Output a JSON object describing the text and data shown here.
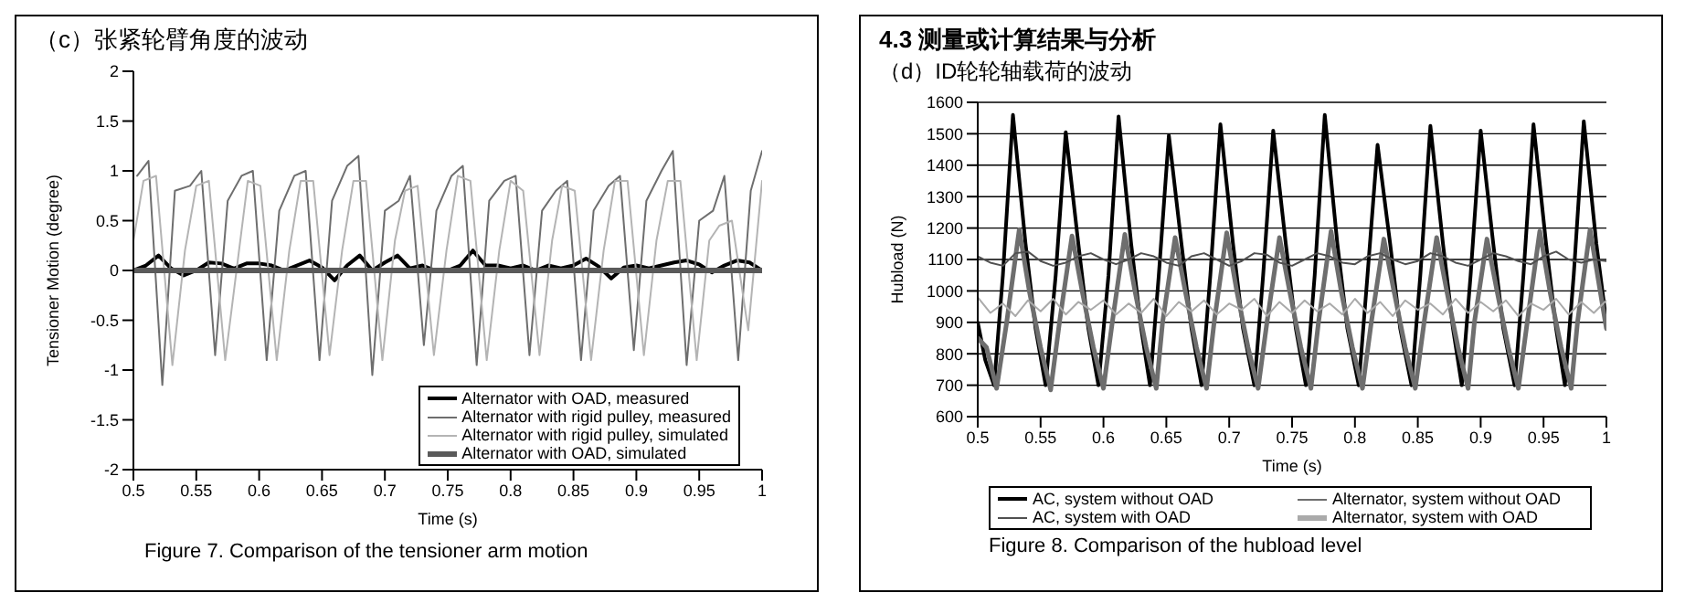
{
  "chart_data": [
    {
      "type": "line",
      "title": "（c）张紧轮臂角度的波动",
      "xlabel": "Time (s)",
      "ylabel": "Tensioner Motion (degree)",
      "annotations": [
        "Figure 7. Comparison of the tensioner arm motion"
      ],
      "xlim": [
        0.5,
        1
      ],
      "xticks": [
        0.5,
        0.55,
        0.6,
        0.65,
        0.7,
        0.75,
        0.8,
        0.85,
        0.9,
        0.95,
        1
      ],
      "ylim": [
        -2,
        2
      ],
      "yticks": [
        -2,
        -1.5,
        -1,
        -0.5,
        0,
        0.5,
        1,
        1.5,
        2
      ],
      "legend": "bottom right",
      "x": [
        0.5,
        0.51,
        0.52,
        0.53,
        0.54,
        0.55,
        0.56,
        0.57,
        0.58,
        0.59,
        0.6,
        0.61,
        0.62,
        0.63,
        0.64,
        0.65,
        0.66,
        0.67,
        0.68,
        0.69,
        0.7,
        0.71,
        0.72,
        0.73,
        0.74,
        0.75,
        0.76,
        0.77,
        0.78,
        0.79,
        0.8,
        0.81,
        0.82,
        0.83,
        0.84,
        0.85,
        0.86,
        0.87,
        0.88,
        0.89,
        0.9,
        0.91,
        0.92,
        0.93,
        0.94,
        0.95,
        0.96,
        0.97,
        0.98,
        0.99,
        1
      ],
      "series": [
        {
          "name": "Alternator with OAD, measured",
          "color": "#000000",
          "values": [
            0,
            0.05,
            0.15,
            0.02,
            -0.05,
            0,
            0.08,
            0.07,
            0.02,
            0.07,
            0.07,
            0.05,
            0,
            0.05,
            0.1,
            0.03,
            -0.1,
            0.05,
            0.15,
            0,
            0.08,
            0.15,
            0.02,
            0.05,
            0,
            0,
            0.05,
            0.2,
            0.05,
            0.05,
            0.02,
            0.05,
            0,
            0.05,
            0.02,
            0.05,
            0.12,
            0.04,
            -0.08,
            0.03,
            0.05,
            0.02,
            0.05,
            0.08,
            0.1,
            0.06,
            -0.02,
            0.05,
            0.1,
            0.08,
            0
          ]
        },
        {
          "name": "Alternator with rigid pulley, measured",
          "color": "#6e6e6e",
          "x": [
            0.503,
            0.512,
            0.523,
            0.533,
            0.545,
            0.554,
            0.565,
            0.575,
            0.586,
            0.595,
            0.606,
            0.616,
            0.628,
            0.637,
            0.648,
            0.658,
            0.67,
            0.679,
            0.69,
            0.7,
            0.711,
            0.72,
            0.731,
            0.741,
            0.753,
            0.762,
            0.773,
            0.783,
            0.795,
            0.804,
            0.815,
            0.825,
            0.836,
            0.845,
            0.856,
            0.866,
            0.878,
            0.887,
            0.898,
            0.908,
            0.92,
            0.929,
            0.94,
            0.95,
            0.961,
            0.97,
            0.981,
            0.991,
            1
          ],
          "values": [
            0.95,
            1.1,
            -1.15,
            0.8,
            0.85,
            1,
            -0.85,
            0.7,
            0.95,
            1,
            -0.9,
            0.6,
            0.95,
            1,
            -0.9,
            0.7,
            1.05,
            1.15,
            -1.05,
            0.6,
            0.7,
            0.95,
            -0.75,
            0.6,
            0.95,
            1.05,
            -0.95,
            0.7,
            0.9,
            0.95,
            -0.85,
            0.6,
            0.8,
            0.9,
            -0.9,
            0.6,
            0.85,
            0.95,
            -0.8,
            0.7,
            1,
            1.2,
            -0.95,
            0.5,
            0.6,
            0.95,
            -0.9,
            0.8,
            1.2
          ]
        },
        {
          "name": "Alternator with rigid pulley, simulated",
          "color": "#b4b4b4",
          "x": [
            0.5,
            0.508,
            0.518,
            0.531,
            0.541,
            0.55,
            0.56,
            0.573,
            0.583,
            0.591,
            0.601,
            0.614,
            0.624,
            0.633,
            0.643,
            0.656,
            0.666,
            0.675,
            0.685,
            0.698,
            0.708,
            0.716,
            0.726,
            0.739,
            0.749,
            0.758,
            0.768,
            0.781,
            0.791,
            0.8,
            0.81,
            0.823,
            0.833,
            0.841,
            0.851,
            0.864,
            0.874,
            0.883,
            0.893,
            0.906,
            0.916,
            0.925,
            0.935,
            0.948,
            0.958,
            0.966,
            0.976,
            0.989,
            1
          ],
          "values": [
            0.3,
            0.9,
            0.95,
            -0.95,
            0.2,
            0.85,
            0.9,
            -0.9,
            0.1,
            0.9,
            0.85,
            -0.9,
            0.2,
            0.9,
            0.9,
            -0.85,
            0.2,
            0.9,
            0.9,
            -0.9,
            0.3,
            0.8,
            0.85,
            -0.85,
            0.2,
            0.95,
            0.9,
            -0.9,
            0.2,
            0.9,
            0.8,
            -0.85,
            0.3,
            0.85,
            0.8,
            -0.9,
            0.2,
            0.9,
            0.9,
            -0.85,
            0.3,
            0.9,
            0.9,
            -0.9,
            0.3,
            0.45,
            0.5,
            -0.6,
            0.9
          ]
        },
        {
          "name": "Alternator with OAD, simulated",
          "color": "#5a5a5a",
          "x": [
            0.5,
            0.75,
            1
          ],
          "values": [
            0,
            0,
            0
          ]
        }
      ]
    },
    {
      "type": "line",
      "title": "4.3 测量或计算结果与分析",
      "subtitle": "（d）ID轮轮轴载荷的波动",
      "xlabel": "Time (s)",
      "ylabel": "Hubload (N)",
      "annotations": [
        "Figure 8. Comparison of the hubload level"
      ],
      "xlim": [
        0.5,
        1
      ],
      "xticks": [
        0.5,
        0.55,
        0.6,
        0.65,
        0.7,
        0.75,
        0.8,
        0.85,
        0.9,
        0.95,
        1
      ],
      "ylim": [
        600,
        1600
      ],
      "yticks": [
        600,
        700,
        800,
        900,
        1000,
        1100,
        1200,
        1300,
        1400,
        1500,
        1600
      ],
      "grid": "y",
      "legend": "bottom",
      "x": [
        0.5,
        0.51,
        0.52,
        0.53,
        0.54,
        0.55,
        0.56,
        0.57,
        0.58,
        0.59,
        0.6,
        0.61,
        0.62,
        0.63,
        0.64,
        0.65,
        0.66,
        0.67,
        0.68,
        0.69,
        0.7,
        0.71,
        0.72,
        0.73,
        0.74,
        0.75,
        0.76,
        0.77,
        0.78,
        0.79,
        0.8,
        0.81,
        0.82,
        0.83,
        0.84,
        0.85,
        0.86,
        0.87,
        0.88,
        0.89,
        0.9,
        0.91,
        0.92,
        0.93,
        0.94,
        0.95,
        0.96,
        0.97,
        0.98,
        0.99,
        1
      ],
      "series": [
        {
          "name": "AC, system without OAD",
          "color": "#000000",
          "x": [
            0.5,
            0.506,
            0.513,
            0.52,
            0.528,
            0.538,
            0.546,
            0.554,
            0.562,
            0.57,
            0.58,
            0.588,
            0.596,
            0.604,
            0.612,
            0.622,
            0.63,
            0.637,
            0.644,
            0.652,
            0.662,
            0.67,
            0.678,
            0.685,
            0.693,
            0.703,
            0.711,
            0.72,
            0.727,
            0.735,
            0.745,
            0.753,
            0.761,
            0.768,
            0.776,
            0.786,
            0.794,
            0.803,
            0.81,
            0.818,
            0.828,
            0.836,
            0.845,
            0.852,
            0.86,
            0.87,
            0.878,
            0.885,
            0.892,
            0.9,
            0.91,
            0.918,
            0.927,
            0.934,
            0.942,
            0.952,
            0.96,
            0.967,
            0.974,
            0.982,
            0.992,
            1
          ],
          "values": [
            900,
            780,
            700,
            1050,
            1560,
            1150,
            880,
            700,
            1050,
            1505,
            1150,
            880,
            700,
            1050,
            1555,
            1150,
            880,
            700,
            1050,
            1495,
            1150,
            880,
            700,
            1050,
            1530,
            1150,
            880,
            700,
            1050,
            1510,
            1150,
            880,
            700,
            1050,
            1560,
            1150,
            880,
            700,
            1050,
            1465,
            1150,
            880,
            700,
            1050,
            1525,
            1150,
            880,
            700,
            1050,
            1510,
            1150,
            880,
            700,
            1050,
            1530,
            1150,
            880,
            700,
            1050,
            1540,
            1150,
            900
          ]
        },
        {
          "name": "Alternator, system without OAD",
          "color": "#6e6e6e",
          "x": [
            0.5,
            0.507,
            0.515,
            0.523,
            0.533,
            0.541,
            0.55,
            0.558,
            0.565,
            0.575,
            0.583,
            0.592,
            0.6,
            0.607,
            0.617,
            0.625,
            0.634,
            0.642,
            0.647,
            0.657,
            0.665,
            0.674,
            0.682,
            0.688,
            0.698,
            0.706,
            0.715,
            0.723,
            0.73,
            0.74,
            0.748,
            0.757,
            0.765,
            0.771,
            0.781,
            0.789,
            0.798,
            0.806,
            0.813,
            0.823,
            0.831,
            0.84,
            0.848,
            0.855,
            0.865,
            0.873,
            0.882,
            0.89,
            0.895,
            0.905,
            0.913,
            0.922,
            0.93,
            0.937,
            0.947,
            0.955,
            0.964,
            0.972,
            0.977,
            0.987,
            0.995,
            1
          ],
          "values": [
            850,
            820,
            690,
            900,
            1195,
            1000,
            820,
            685,
            900,
            1175,
            1000,
            820,
            690,
            900,
            1180,
            1000,
            820,
            690,
            900,
            1170,
            1000,
            820,
            690,
            900,
            1185,
            1000,
            820,
            690,
            900,
            1170,
            1000,
            820,
            690,
            900,
            1190,
            1000,
            820,
            690,
            900,
            1165,
            1000,
            820,
            690,
            900,
            1170,
            1000,
            820,
            690,
            900,
            1165,
            1000,
            820,
            690,
            900,
            1190,
            1000,
            820,
            690,
            900,
            1195,
            1000,
            880
          ]
        },
        {
          "name": "AC, system with OAD",
          "color": "#505050",
          "values": [
            1110,
            1090,
            1080,
            1120,
            1125,
            1095,
            1080,
            1090,
            1110,
            1120,
            1100,
            1085,
            1100,
            1120,
            1110,
            1090,
            1080,
            1110,
            1120,
            1100,
            1080,
            1095,
            1120,
            1115,
            1090,
            1080,
            1100,
            1120,
            1110,
            1090,
            1085,
            1110,
            1120,
            1100,
            1085,
            1095,
            1120,
            1110,
            1090,
            1080,
            1100,
            1120,
            1110,
            1095,
            1085,
            1110,
            1125,
            1100,
            1090,
            1100,
            1095
          ]
        },
        {
          "name": "Alternator, system with OAD",
          "color": "#aaaaaa",
          "values": [
            980,
            930,
            960,
            920,
            970,
            935,
            975,
            925,
            965,
            940,
            970,
            925,
            960,
            930,
            975,
            920,
            965,
            935,
            970,
            925,
            960,
            940,
            975,
            920,
            965,
            930,
            970,
            935,
            960,
            925,
            975,
            930,
            965,
            920,
            970,
            940,
            960,
            925,
            975,
            930,
            965,
            935,
            970,
            920,
            960,
            940,
            975,
            925,
            965,
            930,
            970
          ]
        }
      ]
    }
  ]
}
